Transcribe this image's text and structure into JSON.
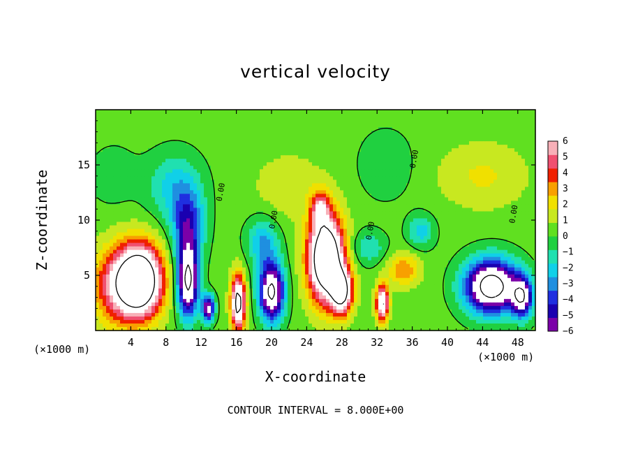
{
  "chart_data": {
    "type": "heatmap",
    "title": "vertical velocity",
    "xlabel": "X-coordinate",
    "ylabel": "Z-coordinate",
    "x_unit_note": "(×1000 m)",
    "x_unit_note_right": "(×1000 m)",
    "footnote": "CONTOUR INTERVAL = 8.000E+00",
    "xlim": [
      0,
      50
    ],
    "ylim": [
      0,
      20
    ],
    "x_ticks": [
      4,
      8,
      12,
      16,
      20,
      24,
      28,
      32,
      36,
      40,
      44,
      48
    ],
    "x_tick_labels": [
      "4",
      "8",
      "12",
      "16",
      "20",
      "24",
      "28",
      "32",
      "36",
      "40",
      "44",
      "48"
    ],
    "y_ticks": [
      5,
      10,
      15
    ],
    "y_tick_labels": [
      "5",
      "10",
      "15"
    ],
    "colorbar": {
      "min": -6,
      "max": 6,
      "ticks": [
        6,
        5,
        4,
        3,
        2,
        1,
        0,
        -1,
        -2,
        -3,
        -4,
        -5,
        -6
      ],
      "tick_labels": [
        "6",
        "5",
        "4",
        "3",
        "2",
        "1",
        "0",
        "−1",
        "−2",
        "−3",
        "−4",
        "−5",
        "−6"
      ],
      "colors": [
        "#7b00a8",
        "#1a00b0",
        "#1f2fe0",
        "#1f8fe0",
        "#10d0e8",
        "#20e0b0",
        "#20d040",
        "#60e020",
        "#c8e820",
        "#f0e000",
        "#f8a000",
        "#f02000",
        "#f05070",
        "#f8b0b8"
      ],
      "note": "white where |w| exceeds 6"
    },
    "contour_labels": [
      "0.00",
      "0.00",
      "0.00",
      "0.00",
      "0.00"
    ],
    "cells": [
      {
        "x": 5,
        "z": 4.5,
        "w": 12,
        "sx": 2.5,
        "sz": 3.2
      },
      {
        "x": 2,
        "z": 4,
        "w": 4,
        "sx": 2.5,
        "sz": 3.5
      },
      {
        "x": 10.5,
        "z": 4.5,
        "w": -9,
        "sx": 1.2,
        "sz": 3.2
      },
      {
        "x": 12.8,
        "z": 2,
        "w": -7,
        "sx": 0.7,
        "sz": 1.2
      },
      {
        "x": 10.5,
        "z": 9.5,
        "w": -4.5,
        "sx": 1.8,
        "sz": 3
      },
      {
        "x": 9,
        "z": 13,
        "w": -2.5,
        "sx": 3,
        "sz": 3
      },
      {
        "x": 16.2,
        "z": 2.5,
        "w": 9,
        "sx": 0.8,
        "sz": 2.5
      },
      {
        "x": 20,
        "z": 3.5,
        "w": -9,
        "sx": 1.4,
        "sz": 2.6
      },
      {
        "x": 19,
        "z": 8,
        "w": -3,
        "sx": 1.8,
        "sz": 2.2
      },
      {
        "x": 26.2,
        "z": 6.5,
        "w": 12,
        "sx": 2,
        "sz": 3.8
      },
      {
        "x": 28,
        "z": 3.5,
        "w": 8,
        "sx": 1.2,
        "sz": 2
      },
      {
        "x": 25.5,
        "z": 11,
        "w": 4,
        "sx": 1,
        "sz": 1.5
      },
      {
        "x": 32.6,
        "z": 2.5,
        "w": 8,
        "sx": 0.7,
        "sz": 1.6
      },
      {
        "x": 35,
        "z": 5.5,
        "w": 3,
        "sx": 1.8,
        "sz": 1.5
      },
      {
        "x": 45,
        "z": 4,
        "w": -10,
        "sx": 3,
        "sz": 2.4
      },
      {
        "x": 48.5,
        "z": 3,
        "w": -7,
        "sx": 1.2,
        "sz": 1.8
      },
      {
        "x": 37,
        "z": 9,
        "w": -2.5,
        "sx": 1.5,
        "sz": 1.5
      },
      {
        "x": 31,
        "z": 7.5,
        "w": -2,
        "sx": 2,
        "sz": 1.5
      },
      {
        "x": 44,
        "z": 14,
        "w": 1.5,
        "sx": 5,
        "sz": 3
      },
      {
        "x": 22,
        "z": 13,
        "w": 1.2,
        "sx": 4,
        "sz": 3
      },
      {
        "x": 33,
        "z": 15,
        "w": -1.2,
        "sx": 3,
        "sz": 3
      },
      {
        "x": 2,
        "z": 14,
        "w": -0.8,
        "sx": 3,
        "sz": 3
      }
    ]
  }
}
